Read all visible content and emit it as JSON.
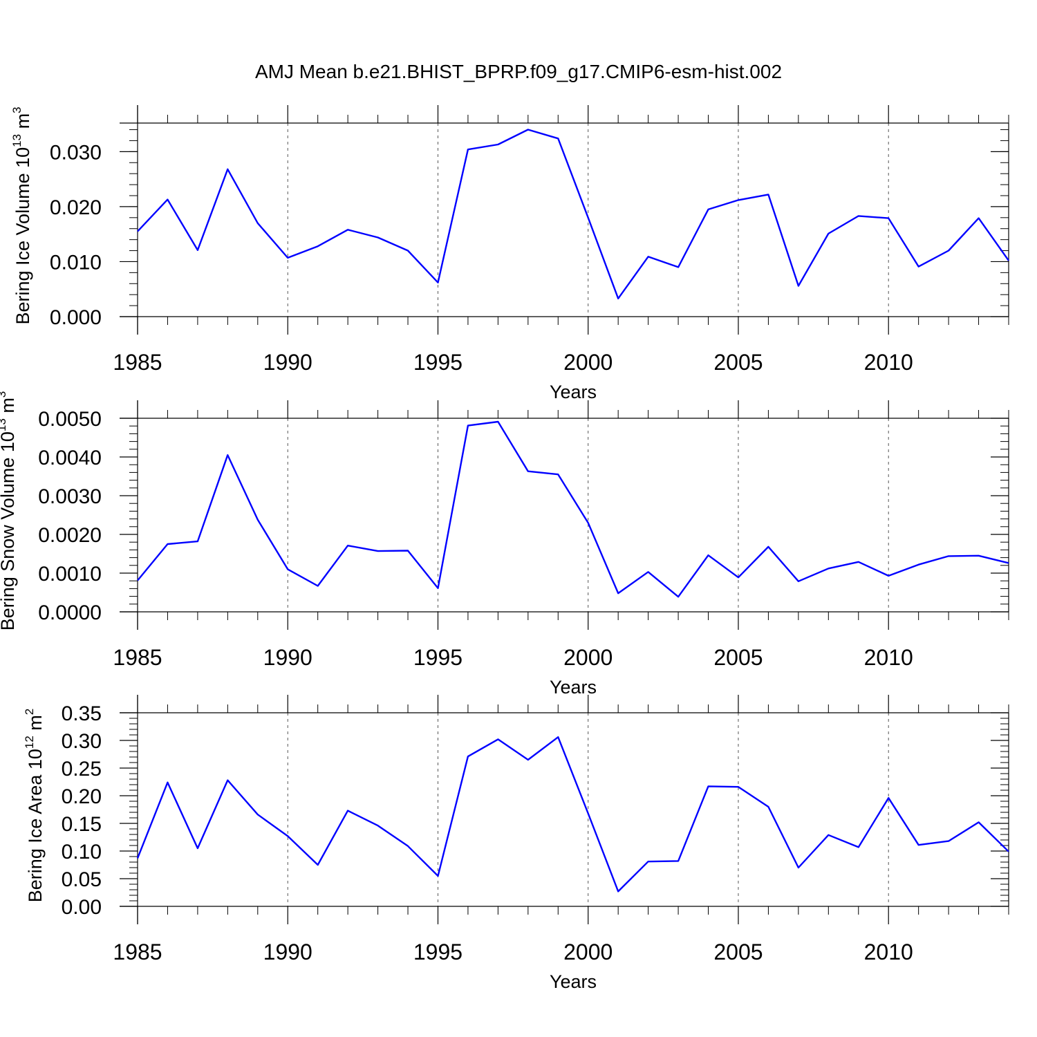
{
  "title": "AMJ Mean b.e21.BHIST_BPRP.f09_g17.CMIP6-esm-hist.002",
  "series_color": "#0000ff",
  "chart_data": [
    {
      "type": "line",
      "ylabel": "Bering Ice Volume 10",
      "ylabel_exp": "13",
      "ylabel_unit": " m",
      "ylabel_unit_exp": "3",
      "xlabel": "Years",
      "xlim": [
        1985,
        2014
      ],
      "ylim": [
        0,
        0.0352
      ],
      "yticks": [
        0.0,
        0.01,
        0.02,
        0.03
      ],
      "ytick_labels": [
        "0.000",
        "0.010",
        "0.020",
        "0.030"
      ],
      "yminor_step": 0.002,
      "xticks": [
        1985,
        1990,
        1995,
        2000,
        2005,
        2010
      ],
      "xtick_labels": [
        "1985",
        "1990",
        "1995",
        "2000",
        "2005",
        "2010"
      ],
      "x": [
        1985,
        1986,
        1987,
        1988,
        1989,
        1990,
        1991,
        1992,
        1993,
        1994,
        1995,
        1996,
        1997,
        1998,
        1999,
        2000,
        2001,
        2002,
        2003,
        2004,
        2005,
        2006,
        2007,
        2008,
        2009,
        2010,
        2011,
        2012,
        2013,
        2014
      ],
      "values": [
        0.0155,
        0.0213,
        0.0121,
        0.0268,
        0.017,
        0.0107,
        0.0128,
        0.0158,
        0.0144,
        0.012,
        0.0062,
        0.0304,
        0.0313,
        0.034,
        0.0324,
        0.018,
        0.0033,
        0.0109,
        0.009,
        0.0195,
        0.0212,
        0.0222,
        0.0056,
        0.0151,
        0.0183,
        0.0179,
        0.0091,
        0.012,
        0.0179,
        0.0102
      ]
    },
    {
      "type": "line",
      "ylabel": "Bering Snow Volume 10",
      "ylabel_exp": "13",
      "ylabel_unit": " m",
      "ylabel_unit_exp": "3",
      "xlabel": "Years",
      "xlim": [
        1985,
        2014
      ],
      "ylim": [
        0,
        0.005
      ],
      "yticks": [
        0.0,
        0.001,
        0.002,
        0.003,
        0.004,
        0.005
      ],
      "ytick_labels": [
        "0.0000",
        "0.0010",
        "0.0020",
        "0.0030",
        "0.0040",
        "0.0050"
      ],
      "yminor_step": 0.0002,
      "xticks": [
        1985,
        1990,
        1995,
        2000,
        2005,
        2010
      ],
      "xtick_labels": [
        "1985",
        "1990",
        "1995",
        "2000",
        "2005",
        "2010"
      ],
      "x": [
        1985,
        1986,
        1987,
        1988,
        1989,
        1990,
        1991,
        1992,
        1993,
        1994,
        1995,
        1996,
        1997,
        1998,
        1999,
        2000,
        2001,
        2002,
        2003,
        2004,
        2005,
        2006,
        2007,
        2008,
        2009,
        2010,
        2011,
        2012,
        2013,
        2014
      ],
      "values": [
        0.00081,
        0.00175,
        0.00182,
        0.00405,
        0.00238,
        0.0011,
        0.00067,
        0.00171,
        0.00157,
        0.00158,
        0.00061,
        0.00481,
        0.00491,
        0.00363,
        0.00355,
        0.0023,
        0.00048,
        0.00103,
        0.00039,
        0.00146,
        0.00089,
        0.00168,
        0.00079,
        0.00112,
        0.00129,
        0.00093,
        0.00122,
        0.00144,
        0.00145,
        0.00126
      ]
    },
    {
      "type": "line",
      "ylabel": "Bering Ice Area 10",
      "ylabel_exp": "12",
      "ylabel_unit": " m",
      "ylabel_unit_exp": "2",
      "xlabel": "Years",
      "xlim": [
        1985,
        2014
      ],
      "ylim": [
        0,
        0.35
      ],
      "yticks": [
        0.0,
        0.05,
        0.1,
        0.15,
        0.2,
        0.25,
        0.3,
        0.35
      ],
      "ytick_labels": [
        "0.00",
        "0.05",
        "0.10",
        "0.15",
        "0.20",
        "0.25",
        "0.30",
        "0.35"
      ],
      "yminor_step": 0.01,
      "xticks": [
        1985,
        1990,
        1995,
        2000,
        2005,
        2010
      ],
      "xtick_labels": [
        "1985",
        "1990",
        "1995",
        "2000",
        "2005",
        "2010"
      ],
      "x": [
        1985,
        1986,
        1987,
        1988,
        1989,
        1990,
        1991,
        1992,
        1993,
        1994,
        1995,
        1996,
        1997,
        1998,
        1999,
        2000,
        2001,
        2002,
        2003,
        2004,
        2005,
        2006,
        2007,
        2008,
        2009,
        2010,
        2011,
        2012,
        2013,
        2014
      ],
      "values": [
        0.087,
        0.224,
        0.105,
        0.228,
        0.166,
        0.127,
        0.075,
        0.173,
        0.146,
        0.109,
        0.055,
        0.271,
        0.302,
        0.265,
        0.306,
        0.168,
        0.027,
        0.081,
        0.082,
        0.217,
        0.216,
        0.18,
        0.07,
        0.129,
        0.107,
        0.196,
        0.111,
        0.118,
        0.152,
        0.099
      ]
    }
  ]
}
